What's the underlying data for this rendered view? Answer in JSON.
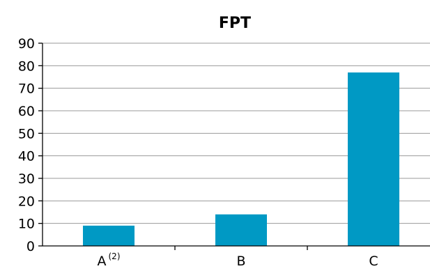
{
  "chart_data": {
    "type": "bar",
    "title": "FPT",
    "categories": [
      "A",
      "B",
      "C"
    ],
    "category_superscripts": [
      "(2)",
      "",
      ""
    ],
    "values": [
      9,
      14,
      77
    ],
    "ylim": [
      0,
      90
    ],
    "yticks": [
      "0",
      "10",
      "20",
      "30",
      "40",
      "50",
      "60",
      "70",
      "80",
      "90"
    ],
    "grid": true,
    "bar_color": "#0099c4"
  }
}
